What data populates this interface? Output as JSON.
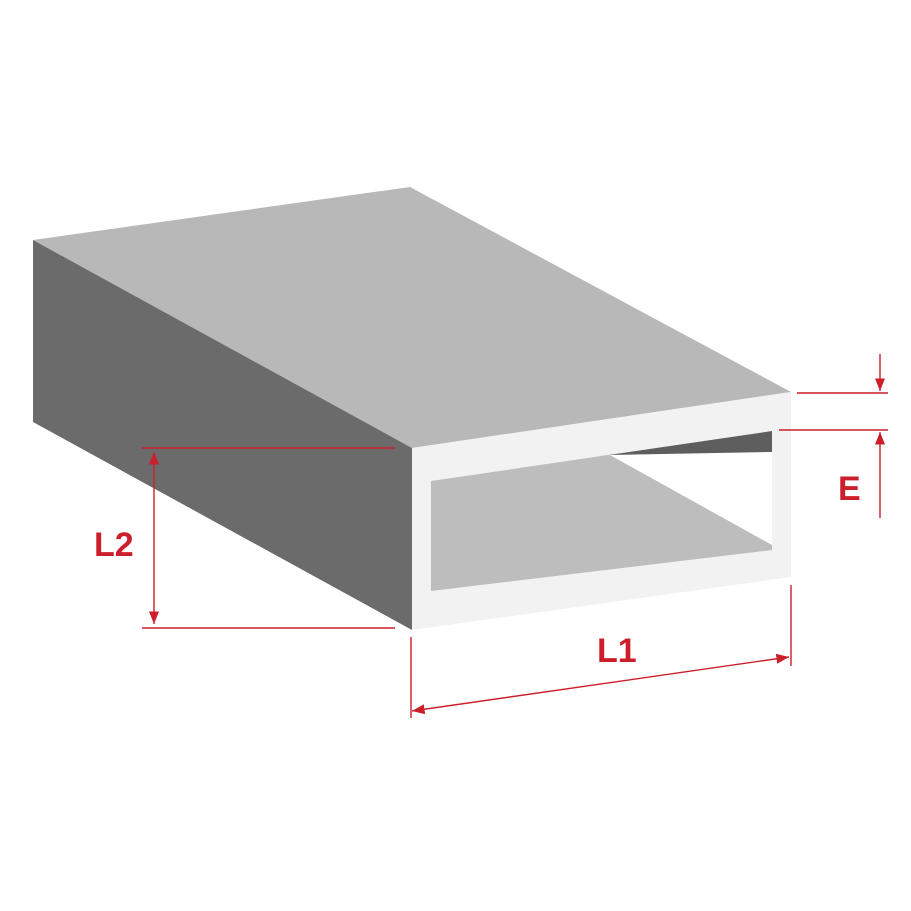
{
  "labels": {
    "l1": "L1",
    "l2": "L2",
    "e": "E"
  },
  "colors": {
    "top_face": "#b8b8b8",
    "side_face": "#6b6b6b",
    "inner_wall": "#5e5e5e",
    "inner_floor": "#bdbdbd",
    "end_face": "#f2f2f2",
    "dimension": "#cc1f2b"
  }
}
